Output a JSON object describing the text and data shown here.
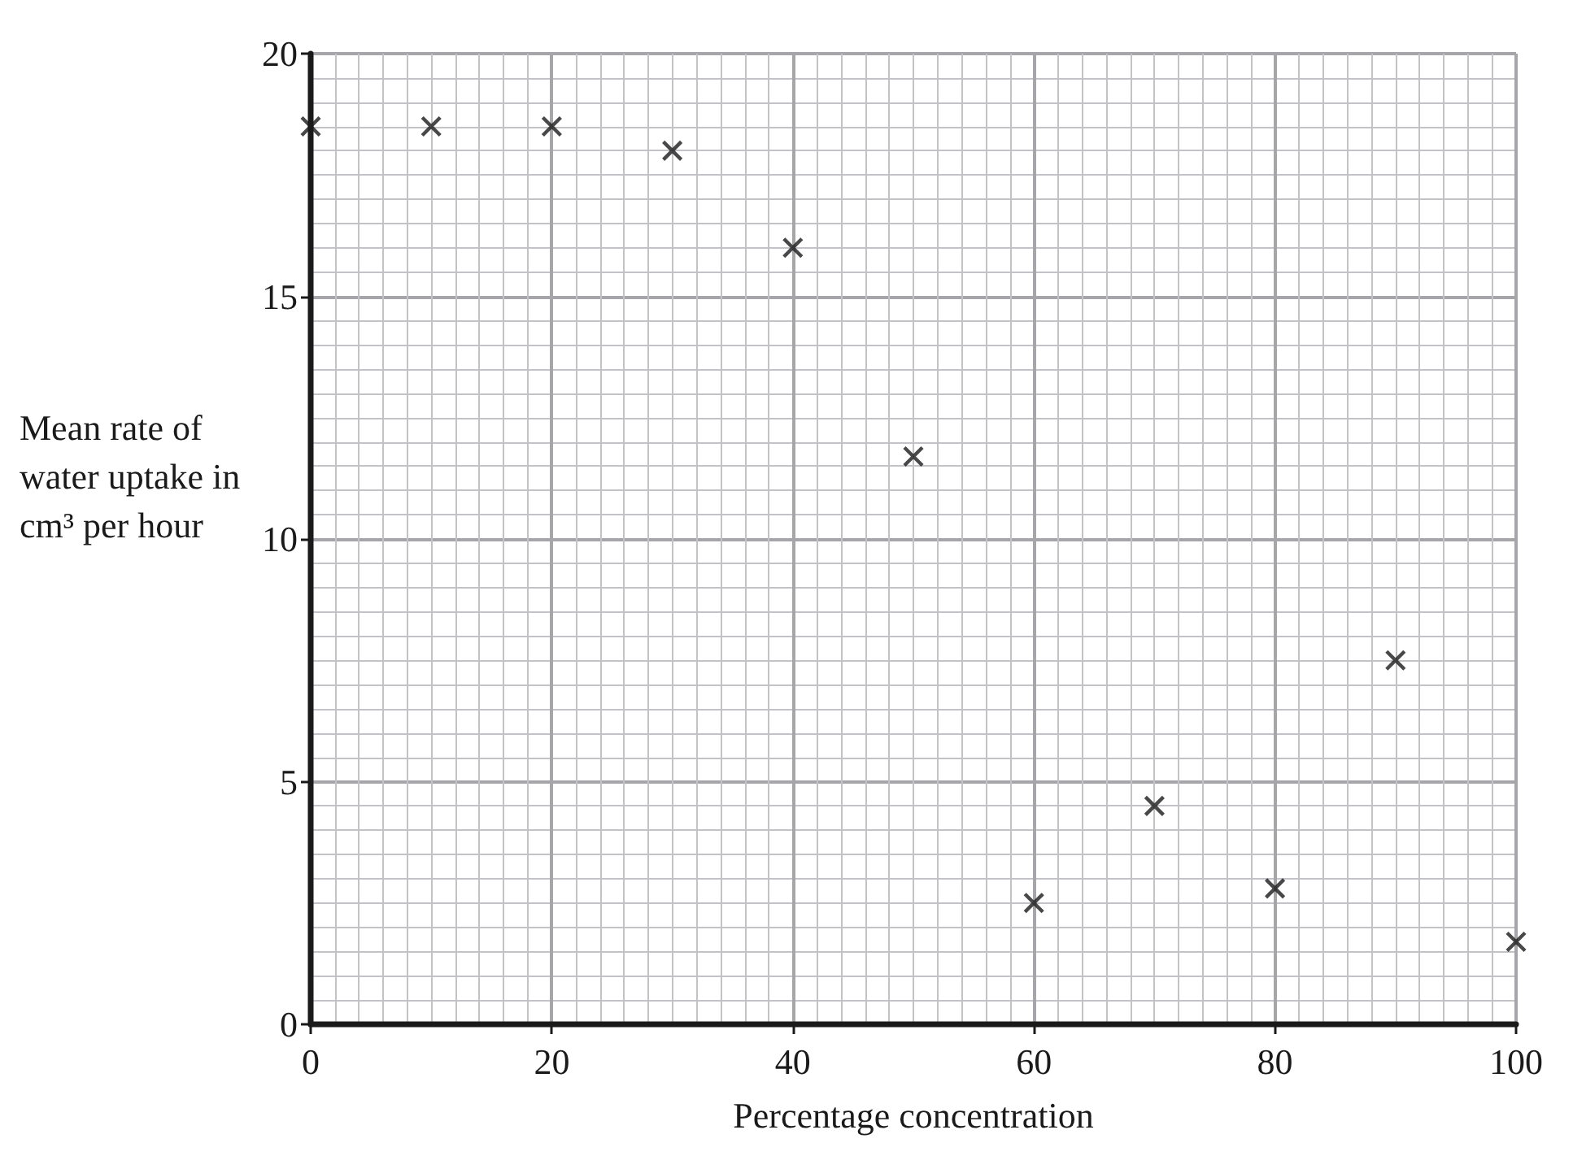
{
  "chart_data": {
    "type": "scatter",
    "xlabel": "Percentage concentration",
    "ylabel": "Mean rate of water uptake in cm³ per hour",
    "x": [
      0,
      10,
      20,
      30,
      40,
      50,
      60,
      70,
      80,
      90,
      100
    ],
    "values": [
      18.5,
      18.5,
      18.5,
      18,
      16,
      11.7,
      2.5,
      4.5,
      2.8,
      7.5,
      1.7
    ],
    "color": "#1a1a1a",
    "marker": "cross",
    "grid": true,
    "xlim": [
      0,
      100
    ],
    "xticks": [
      0,
      20,
      40,
      60,
      80,
      100
    ],
    "ylim": [
      0,
      20
    ],
    "yticks": [
      0,
      5,
      10,
      15,
      20
    ]
  }
}
